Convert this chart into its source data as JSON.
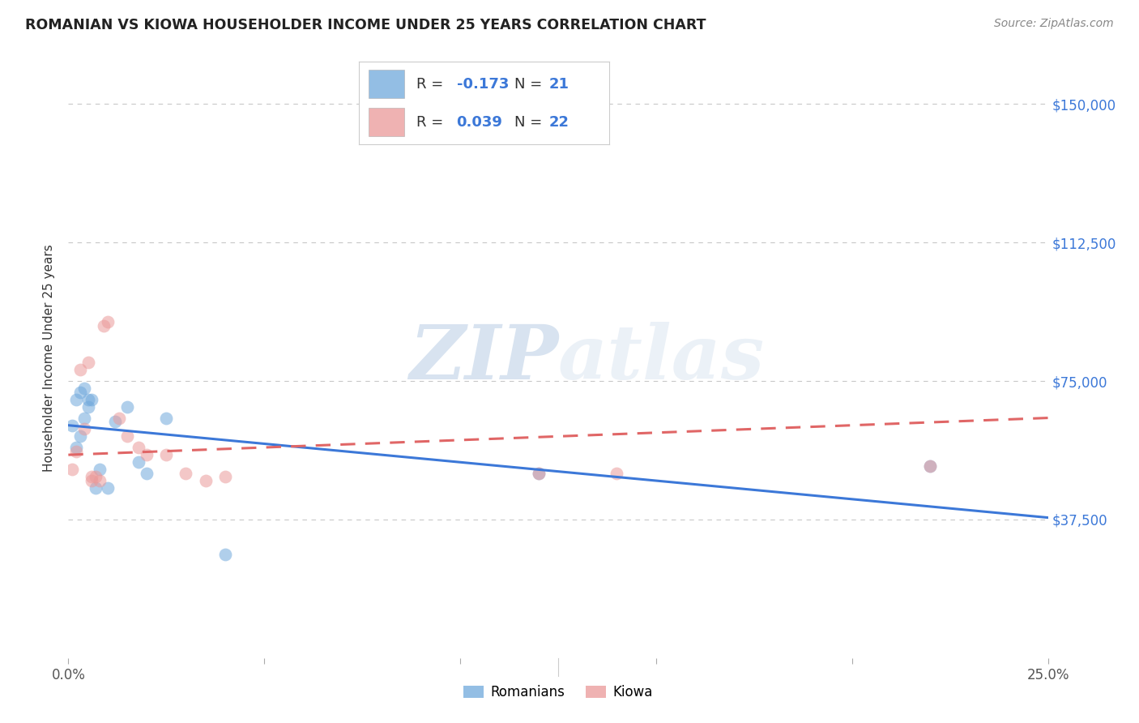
{
  "title": "ROMANIAN VS KIOWA HOUSEHOLDER INCOME UNDER 25 YEARS CORRELATION CHART",
  "source": "Source: ZipAtlas.com",
  "ylabel": "Householder Income Under 25 years",
  "xlim": [
    0.0,
    0.25
  ],
  "ylim": [
    0,
    162500
  ],
  "yticks": [
    37500,
    75000,
    112500,
    150000
  ],
  "ytick_labels": [
    "$37,500",
    "$75,000",
    "$112,500",
    "$150,000"
  ],
  "xticks": [
    0.0,
    0.05,
    0.1,
    0.15,
    0.2,
    0.25
  ],
  "xtick_labels": [
    "0.0%",
    "",
    "",
    "",
    "",
    "25.0%"
  ],
  "grid_color": "#c8c8c8",
  "background_color": "#ffffff",
  "romanian_color": "#6fa8dc",
  "kiowa_color": "#ea9999",
  "romanian_line_color": "#3c78d8",
  "kiowa_line_color": "#e06666",
  "legend_romanian_r": "-0.173",
  "legend_romanian_n": "21",
  "legend_kiowa_r": "0.039",
  "legend_kiowa_n": "22",
  "watermark_zip": "ZIP",
  "watermark_atlas": "atlas",
  "romanian_x": [
    0.001,
    0.002,
    0.002,
    0.003,
    0.003,
    0.004,
    0.004,
    0.005,
    0.005,
    0.006,
    0.007,
    0.008,
    0.01,
    0.012,
    0.015,
    0.018,
    0.02,
    0.025,
    0.04,
    0.12,
    0.22
  ],
  "romanian_y": [
    63000,
    57000,
    70000,
    60000,
    72000,
    65000,
    73000,
    70000,
    68000,
    70000,
    46000,
    51000,
    46000,
    64000,
    68000,
    53000,
    50000,
    65000,
    28000,
    50000,
    52000
  ],
  "kiowa_x": [
    0.001,
    0.002,
    0.003,
    0.004,
    0.005,
    0.006,
    0.006,
    0.007,
    0.008,
    0.009,
    0.01,
    0.013,
    0.015,
    0.018,
    0.02,
    0.025,
    0.03,
    0.035,
    0.04,
    0.12,
    0.14,
    0.22
  ],
  "kiowa_y": [
    51000,
    56000,
    78000,
    62000,
    80000,
    49000,
    48000,
    49000,
    48000,
    90000,
    91000,
    65000,
    60000,
    57000,
    55000,
    55000,
    50000,
    48000,
    49000,
    50000,
    50000,
    52000
  ],
  "marker_size": 130,
  "marker_alpha": 0.55,
  "line_width": 2.2,
  "romanian_trend_x0": 0.0,
  "romanian_trend_y0": 63000,
  "romanian_trend_x1": 0.25,
  "romanian_trend_y1": 38000,
  "kiowa_trend_x0": 0.0,
  "kiowa_trend_y0": 55000,
  "kiowa_trend_x1": 0.25,
  "kiowa_trend_y1": 65000
}
